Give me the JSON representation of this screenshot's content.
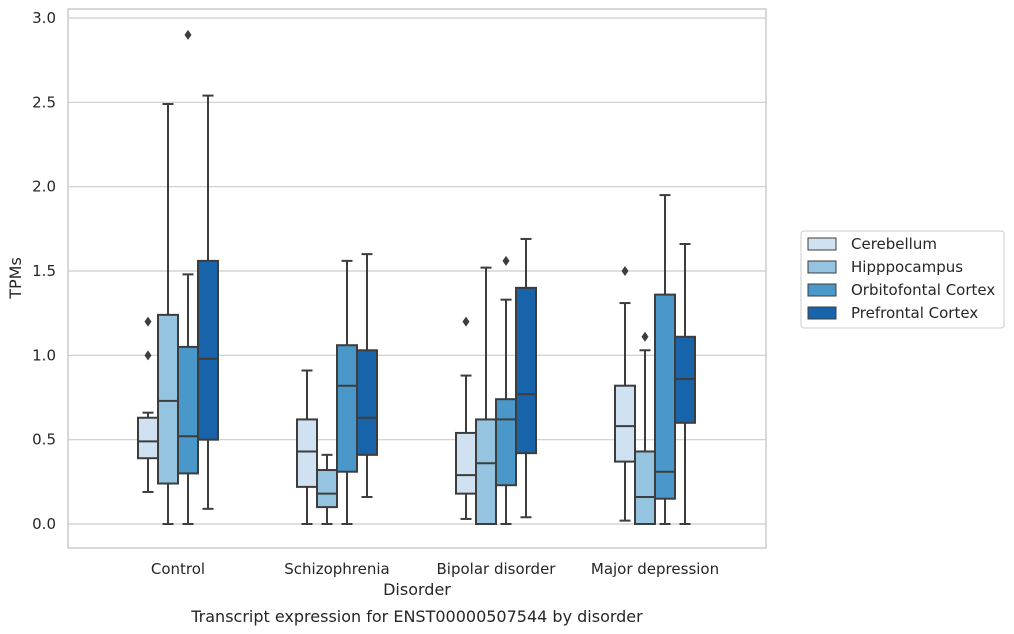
{
  "chart_data": {
    "type": "box",
    "caption": "Transcript expression for ENST00000507544 by disorder",
    "xlabel": "Disorder",
    "ylabel": "TPMs",
    "ylim": [
      -0.14,
      3.05
    ],
    "yticks": [
      "0.0",
      "0.5",
      "1.0",
      "1.5",
      "2.0",
      "2.5",
      "3.0"
    ],
    "grid": true,
    "legend_position": "right",
    "categories": [
      "Control",
      "Schizophrenia",
      "Bipolar disorder",
      "Major depression"
    ],
    "series": [
      {
        "name": "Cerebellum",
        "color": "#d0e1f2",
        "boxes": [
          {
            "whislo": 0.19,
            "q1": 0.39,
            "med": 0.49,
            "q3": 0.63,
            "whishi": 0.66,
            "fliers": [
              1.0,
              1.2
            ]
          },
          {
            "whislo": 0.0,
            "q1": 0.22,
            "med": 0.43,
            "q3": 0.62,
            "whishi": 0.91,
            "fliers": []
          },
          {
            "whislo": 0.03,
            "q1": 0.18,
            "med": 0.29,
            "q3": 0.54,
            "whishi": 0.88,
            "fliers": [
              1.2
            ]
          },
          {
            "whislo": 0.02,
            "q1": 0.37,
            "med": 0.58,
            "q3": 0.82,
            "whishi": 1.31,
            "fliers": [
              1.5
            ]
          }
        ]
      },
      {
        "name": "Hipppocampus",
        "color": "#94c4df",
        "boxes": [
          {
            "whislo": 0.0,
            "q1": 0.24,
            "med": 0.73,
            "q3": 1.24,
            "whishi": 2.49,
            "fliers": []
          },
          {
            "whislo": 0.0,
            "q1": 0.1,
            "med": 0.18,
            "q3": 0.32,
            "whishi": 0.41,
            "fliers": []
          },
          {
            "whislo": 0.0,
            "q1": 0.0,
            "med": 0.36,
            "q3": 0.62,
            "whishi": 1.52,
            "fliers": []
          },
          {
            "whislo": 0.0,
            "q1": 0.0,
            "med": 0.16,
            "q3": 0.43,
            "whishi": 1.03,
            "fliers": [
              1.11
            ]
          }
        ]
      },
      {
        "name": "Orbitofontal Cortex",
        "color": "#4a98c9",
        "boxes": [
          {
            "whislo": 0.0,
            "q1": 0.3,
            "med": 0.52,
            "q3": 1.05,
            "whishi": 1.48,
            "fliers": [
              2.9
            ]
          },
          {
            "whislo": 0.0,
            "q1": 0.31,
            "med": 0.82,
            "q3": 1.06,
            "whishi": 1.56,
            "fliers": []
          },
          {
            "whislo": 0.0,
            "q1": 0.23,
            "med": 0.62,
            "q3": 0.74,
            "whishi": 1.33,
            "fliers": [
              1.56
            ]
          },
          {
            "whislo": 0.0,
            "q1": 0.15,
            "med": 0.31,
            "q3": 1.36,
            "whishi": 1.95,
            "fliers": []
          }
        ]
      },
      {
        "name": "Prefrontal Cortex",
        "color": "#1764ab",
        "boxes": [
          {
            "whislo": 0.09,
            "q1": 0.5,
            "med": 0.98,
            "q3": 1.56,
            "whishi": 2.54,
            "fliers": []
          },
          {
            "whislo": 0.16,
            "q1": 0.41,
            "med": 0.63,
            "q3": 1.03,
            "whishi": 1.6,
            "fliers": []
          },
          {
            "whislo": 0.04,
            "q1": 0.42,
            "med": 0.77,
            "q3": 1.4,
            "whishi": 1.69,
            "fliers": []
          },
          {
            "whislo": 0.0,
            "q1": 0.6,
            "med": 0.86,
            "q3": 1.11,
            "whishi": 1.66,
            "fliers": []
          }
        ]
      }
    ]
  },
  "style": {
    "grid_color": "#cccccc",
    "axis_color": "#cccccc",
    "line_color": "#3d3d3d"
  }
}
